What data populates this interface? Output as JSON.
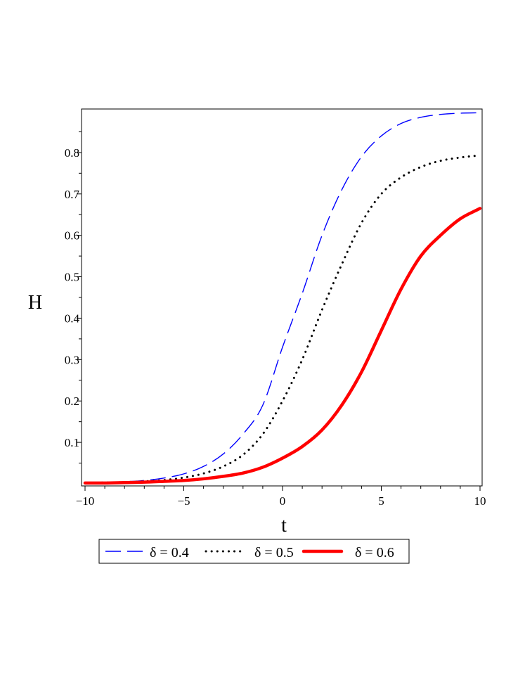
{
  "chart_data": {
    "type": "line",
    "xlabel": "t",
    "ylabel": "H",
    "xlim": [
      -10,
      10
    ],
    "ylim": [
      0,
      0.9
    ],
    "xticks": [
      -10,
      -5,
      0,
      5,
      10
    ],
    "yticks": [
      0.1,
      0.2,
      0.3,
      0.4,
      0.5,
      0.6,
      0.7,
      0.8
    ],
    "grid": false,
    "legend_position": "bottom",
    "series": [
      {
        "name": "δ = 0.4",
        "color": "#0000ff",
        "style": "dashed",
        "x": [
          -10,
          -9,
          -8,
          -7,
          -6,
          -5,
          -4,
          -3,
          -2,
          -1,
          0,
          1,
          2,
          3,
          4,
          5,
          6,
          7,
          8,
          9,
          10
        ],
        "y": [
          0.002,
          0.003,
          0.005,
          0.008,
          0.014,
          0.024,
          0.042,
          0.072,
          0.12,
          0.19,
          0.33,
          0.46,
          0.6,
          0.71,
          0.79,
          0.84,
          0.87,
          0.885,
          0.892,
          0.895,
          0.896
        ]
      },
      {
        "name": "δ = 0.5",
        "color": "#000000",
        "style": "dotted",
        "x": [
          -10,
          -9,
          -8,
          -7,
          -6,
          -5,
          -4,
          -3,
          -2,
          -1,
          0,
          1,
          2,
          3,
          4,
          5,
          6,
          7,
          8,
          9,
          10
        ],
        "y": [
          0.002,
          0.003,
          0.004,
          0.006,
          0.009,
          0.015,
          0.025,
          0.042,
          0.07,
          0.12,
          0.2,
          0.3,
          0.42,
          0.53,
          0.63,
          0.7,
          0.74,
          0.765,
          0.78,
          0.788,
          0.793
        ]
      },
      {
        "name": "δ = 0.6",
        "color": "#ff0000",
        "style": "solid",
        "x": [
          -10,
          -9,
          -8,
          -7,
          -6,
          -5,
          -4,
          -3,
          -2,
          -1,
          0,
          1,
          2,
          3,
          4,
          5,
          6,
          7,
          8,
          9,
          10
        ],
        "y": [
          0.002,
          0.002,
          0.003,
          0.004,
          0.006,
          0.008,
          0.012,
          0.018,
          0.026,
          0.04,
          0.062,
          0.09,
          0.13,
          0.19,
          0.27,
          0.37,
          0.47,
          0.55,
          0.6,
          0.64,
          0.665
        ]
      }
    ]
  }
}
